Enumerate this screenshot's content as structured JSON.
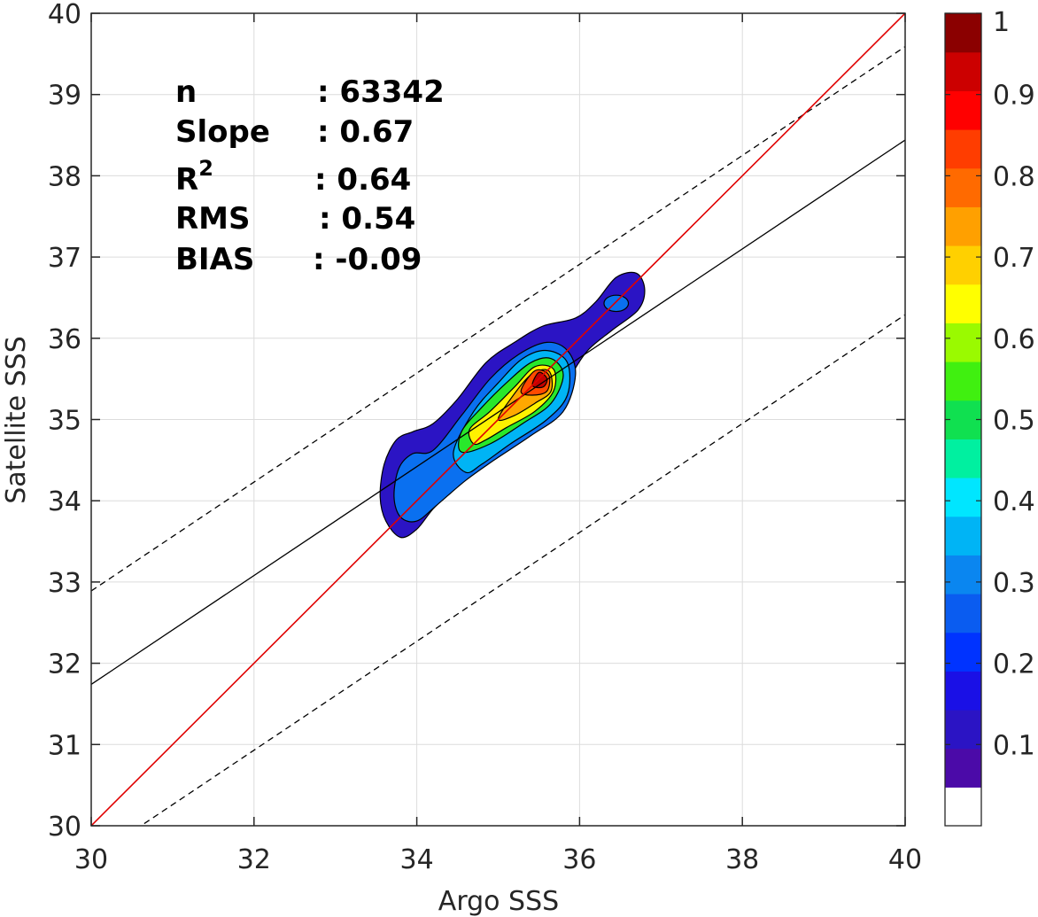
{
  "chart_data": {
    "type": "contour",
    "xlabel": "Argo SSS",
    "ylabel": "Satellite SSS",
    "xlim": [
      30,
      40
    ],
    "ylim": [
      30,
      40
    ],
    "xticks": [
      "30",
      "32",
      "34",
      "36",
      "38",
      "40"
    ],
    "yticks": [
      "30",
      "31",
      "32",
      "33",
      "34",
      "35",
      "36",
      "37",
      "38",
      "39",
      "40"
    ],
    "grid": true,
    "stats": [
      {
        "label": "n",
        "value": ": 63342"
      },
      {
        "label": "Slope",
        "value": ": 0.67"
      },
      {
        "label": "R",
        "superscript": "2",
        "value": ": 0.64"
      },
      {
        "label": "RMS",
        "value": ": 0.54"
      },
      {
        "label": "BIAS",
        "value": ": -0.09"
      }
    ],
    "lines": {
      "identity": {
        "color": "#e00000",
        "x": [
          30,
          40
        ],
        "y": [
          30,
          40
        ]
      },
      "fit": {
        "color": "#000000",
        "slope": 0.67,
        "intercept": 11.64,
        "style": "solid"
      },
      "fit_upper": {
        "color": "#000000",
        "slope": 0.67,
        "intercept": 12.79,
        "style": "dashed"
      },
      "fit_lower": {
        "color": "#000000",
        "slope": 0.67,
        "intercept": 9.49,
        "style": "dashed"
      }
    },
    "density_contours": [
      {
        "level": 0.05,
        "color": "#2b14c4",
        "polygon": [
          [
            33.8,
            33.55
          ],
          [
            33.62,
            33.75
          ],
          [
            33.55,
            34.05
          ],
          [
            33.6,
            34.45
          ],
          [
            33.75,
            34.75
          ],
          [
            33.95,
            34.85
          ],
          [
            34.2,
            34.95
          ],
          [
            34.5,
            35.25
          ],
          [
            34.85,
            35.7
          ],
          [
            35.2,
            35.95
          ],
          [
            35.55,
            36.15
          ],
          [
            35.95,
            36.25
          ],
          [
            36.2,
            36.45
          ],
          [
            36.45,
            36.75
          ],
          [
            36.7,
            36.8
          ],
          [
            36.8,
            36.6
          ],
          [
            36.72,
            36.35
          ],
          [
            36.4,
            36.1
          ],
          [
            36.1,
            35.85
          ],
          [
            35.9,
            35.55
          ],
          [
            35.7,
            35.2
          ],
          [
            35.3,
            34.95
          ],
          [
            35.0,
            34.7
          ],
          [
            34.7,
            34.45
          ],
          [
            34.45,
            34.15
          ],
          [
            34.2,
            33.9
          ],
          [
            34.0,
            33.65
          ]
        ]
      },
      {
        "level": 0.2,
        "color": "#0a70f0",
        "polygon": [
          [
            33.8,
            33.8
          ],
          [
            33.72,
            34.05
          ],
          [
            33.78,
            34.4
          ],
          [
            33.95,
            34.58
          ],
          [
            34.2,
            34.62
          ],
          [
            34.55,
            35.05
          ],
          [
            34.9,
            35.5
          ],
          [
            35.25,
            35.8
          ],
          [
            35.6,
            35.95
          ],
          [
            35.85,
            35.85
          ],
          [
            35.95,
            35.55
          ],
          [
            35.8,
            35.1
          ],
          [
            35.4,
            34.8
          ],
          [
            34.95,
            34.5
          ],
          [
            34.6,
            34.25
          ],
          [
            34.25,
            33.95
          ],
          [
            34.0,
            33.75
          ]
        ]
      },
      {
        "level": 0.3,
        "color": "#00b4f5",
        "polygon": [
          [
            34.6,
            34.35
          ],
          [
            34.45,
            34.6
          ],
          [
            34.7,
            35.1
          ],
          [
            35.0,
            35.45
          ],
          [
            35.3,
            35.75
          ],
          [
            35.6,
            35.85
          ],
          [
            35.85,
            35.7
          ],
          [
            35.85,
            35.3
          ],
          [
            35.6,
            35.0
          ],
          [
            35.15,
            34.7
          ],
          [
            34.8,
            34.45
          ]
        ]
      },
      {
        "level": 0.5,
        "color": "#29e82b",
        "polygon": [
          [
            34.55,
            34.6
          ],
          [
            34.55,
            34.85
          ],
          [
            34.8,
            35.15
          ],
          [
            35.1,
            35.45
          ],
          [
            35.4,
            35.7
          ],
          [
            35.65,
            35.75
          ],
          [
            35.8,
            35.55
          ],
          [
            35.65,
            35.2
          ],
          [
            35.3,
            34.95
          ],
          [
            34.9,
            34.7
          ]
        ]
      },
      {
        "level": 0.65,
        "color": "#fff200",
        "polygon": [
          [
            34.7,
            34.7
          ],
          [
            34.65,
            34.88
          ],
          [
            34.9,
            35.1
          ],
          [
            35.2,
            35.4
          ],
          [
            35.45,
            35.65
          ],
          [
            35.68,
            35.62
          ],
          [
            35.68,
            35.35
          ],
          [
            35.45,
            35.1
          ],
          [
            35.1,
            34.9
          ],
          [
            34.85,
            34.75
          ]
        ]
      },
      {
        "level": 0.75,
        "color": "#ffa800",
        "polygon": [
          [
            35.0,
            35.0
          ],
          [
            35.15,
            35.25
          ],
          [
            35.4,
            35.55
          ],
          [
            35.62,
            35.6
          ],
          [
            35.65,
            35.35
          ],
          [
            35.45,
            35.2
          ],
          [
            35.2,
            35.05
          ]
        ]
      },
      {
        "level": 0.85,
        "color": "#ff4a00",
        "polygon": [
          [
            35.28,
            35.35
          ],
          [
            35.45,
            35.6
          ],
          [
            35.62,
            35.55
          ],
          [
            35.6,
            35.35
          ],
          [
            35.42,
            35.3
          ]
        ]
      },
      {
        "level": 0.95,
        "color": "#c20000",
        "polygon": [
          [
            35.42,
            35.42
          ],
          [
            35.5,
            35.58
          ],
          [
            35.6,
            35.5
          ],
          [
            35.55,
            35.4
          ]
        ]
      }
    ],
    "minor_contour": {
      "level": 0.2,
      "color": "#0a70f0",
      "center": [
        36.45,
        36.43
      ],
      "rx": 0.15,
      "ry": 0.1
    },
    "colorbar": {
      "tick_labels": [
        "0.1",
        "0.2",
        "0.3",
        "0.4",
        "0.5",
        "0.6",
        "0.7",
        "0.8",
        "0.9",
        "1"
      ],
      "tick_values": [
        0.1,
        0.2,
        0.3,
        0.4,
        0.5,
        0.6,
        0.7,
        0.8,
        0.9,
        1.0
      ],
      "colors": [
        "#ffffff",
        "#4b0aa8",
        "#2b14c4",
        "#1a10e6",
        "#0033ff",
        "#0a5cf0",
        "#0a86f0",
        "#00b4f5",
        "#00e6ff",
        "#00f0a0",
        "#10e050",
        "#40f010",
        "#9afa00",
        "#ffff00",
        "#ffd000",
        "#ffa000",
        "#ff6a00",
        "#ff3d00",
        "#ff0000",
        "#cc0000",
        "#8b0000"
      ],
      "range": [
        0,
        1
      ]
    }
  }
}
